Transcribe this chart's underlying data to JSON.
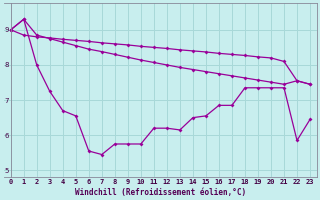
{
  "xlabel": "Windchill (Refroidissement éolien,°C)",
  "bg_color": "#c8eeee",
  "line_color": "#990099",
  "grid_color": "#a8d8d8",
  "xlim_min": -0.5,
  "xlim_max": 23.5,
  "ylim_min": 4.8,
  "ylim_max": 9.75,
  "xticks": [
    0,
    1,
    2,
    3,
    4,
    5,
    6,
    7,
    8,
    9,
    10,
    11,
    12,
    13,
    14,
    15,
    16,
    17,
    18,
    19,
    20,
    21,
    22,
    23
  ],
  "yticks": [
    5,
    6,
    7,
    8,
    9
  ],
  "series1_x": [
    0,
    1,
    2,
    3,
    4,
    5,
    6,
    7,
    8,
    9,
    10,
    11,
    12,
    13,
    14,
    15,
    16,
    17,
    18,
    19,
    20,
    21,
    22,
    23
  ],
  "series1_y": [
    9.0,
    8.85,
    8.8,
    8.77,
    8.73,
    8.7,
    8.67,
    8.63,
    8.6,
    8.57,
    8.53,
    8.5,
    8.47,
    8.43,
    8.4,
    8.37,
    8.33,
    8.3,
    8.27,
    8.23,
    8.2,
    8.1,
    7.55,
    7.45
  ],
  "series2_x": [
    0,
    1,
    2,
    3,
    4,
    5,
    6,
    7,
    8,
    9,
    10,
    11,
    12,
    13,
    14,
    15,
    16,
    17,
    18,
    19,
    20,
    21,
    22,
    23
  ],
  "series2_y": [
    9.0,
    9.3,
    8.85,
    8.75,
    8.65,
    8.55,
    8.45,
    8.38,
    8.3,
    8.22,
    8.14,
    8.07,
    8.0,
    7.93,
    7.87,
    7.81,
    7.75,
    7.69,
    7.63,
    7.57,
    7.51,
    7.45,
    7.55,
    7.45
  ],
  "series3_x": [
    0,
    1,
    2,
    3,
    4,
    5,
    6,
    7,
    8,
    9,
    10,
    11,
    12,
    13,
    14,
    15,
    16,
    17,
    18,
    19,
    20,
    21,
    22,
    23
  ],
  "series3_y": [
    9.0,
    9.3,
    8.0,
    7.25,
    6.7,
    6.55,
    5.55,
    5.45,
    5.75,
    5.75,
    5.75,
    6.2,
    6.2,
    6.15,
    6.5,
    6.55,
    6.85,
    6.85,
    7.35,
    7.35,
    7.35,
    7.35,
    5.85,
    6.45
  ]
}
